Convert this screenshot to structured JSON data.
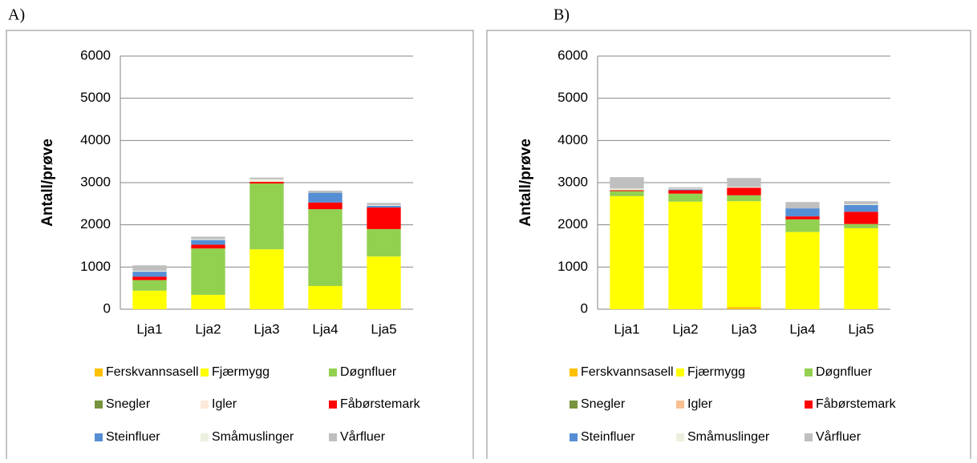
{
  "chart_data": [
    {
      "type": "bar",
      "stacked": true,
      "label": "A)",
      "y_label": "Antall/prøve",
      "categories": [
        "Lja1",
        "Lja2",
        "Lja3",
        "Lja4",
        "Lja5"
      ],
      "ylim": [
        0,
        6000
      ],
      "yticks": [
        0,
        1000,
        2000,
        3000,
        4000,
        5000,
        6000
      ],
      "grid": true,
      "series": [
        {
          "name": "Ferskvannsasell",
          "color": "#ffc000",
          "values": [
            0,
            0,
            0,
            0,
            0
          ]
        },
        {
          "name": "Fjærmygg",
          "color": "#ffff00",
          "values": [
            440,
            340,
            1420,
            550,
            1250
          ]
        },
        {
          "name": "Døgnfluer",
          "color": "#92d050",
          "values": [
            250,
            1100,
            1560,
            1820,
            650
          ]
        },
        {
          "name": "Snegler",
          "color": "#77933c",
          "values": [
            0,
            0,
            0,
            0,
            0
          ]
        },
        {
          "name": "Igler",
          "color": "#fde9d9",
          "values": [
            0,
            0,
            0,
            0,
            0
          ]
        },
        {
          "name": "Fåbørstemark",
          "color": "#ff0000",
          "values": [
            80,
            90,
            40,
            160,
            510
          ]
        },
        {
          "name": "Steinfluer",
          "color": "#558ed5",
          "values": [
            120,
            110,
            0,
            230,
            40
          ]
        },
        {
          "name": "Småmuslinger",
          "color": "#ebf1de",
          "values": [
            20,
            20,
            60,
            0,
            20
          ]
        },
        {
          "name": "Vårfluer",
          "color": "#bfbfbf",
          "values": [
            130,
            60,
            40,
            50,
            50
          ]
        }
      ]
    },
    {
      "type": "bar",
      "stacked": true,
      "label": "B)",
      "y_label": "Antall/prøve",
      "categories": [
        "Lja1",
        "Lja2",
        "Lja3",
        "Lja4",
        "Lja5"
      ],
      "ylim": [
        0,
        6000
      ],
      "yticks": [
        0,
        1000,
        2000,
        3000,
        4000,
        5000,
        6000
      ],
      "grid": true,
      "series": [
        {
          "name": "Ferskvannsasell",
          "color": "#ffc000",
          "values": [
            0,
            0,
            50,
            0,
            0
          ]
        },
        {
          "name": "Fjærmygg",
          "color": "#ffff00",
          "values": [
            2680,
            2550,
            2510,
            1830,
            1920
          ]
        },
        {
          "name": "Døgnfluer",
          "color": "#92d050",
          "values": [
            120,
            190,
            140,
            300,
            100
          ]
        },
        {
          "name": "Snegler",
          "color": "#77933c",
          "values": [
            0,
            0,
            0,
            0,
            0
          ]
        },
        {
          "name": "Igler",
          "color": "#fac090",
          "values": [
            0,
            0,
            0,
            0,
            0
          ]
        },
        {
          "name": "Fåbørstemark",
          "color": "#ff0000",
          "values": [
            20,
            80,
            180,
            70,
            290
          ]
        },
        {
          "name": "Steinfluer",
          "color": "#558ed5",
          "values": [
            0,
            20,
            0,
            190,
            160
          ]
        },
        {
          "name": "Småmuslinger",
          "color": "#ebf1de",
          "values": [
            40,
            20,
            20,
            0,
            20
          ]
        },
        {
          "name": "Vårfluer",
          "color": "#bfbfbf",
          "values": [
            270,
            30,
            210,
            150,
            70
          ]
        }
      ]
    }
  ]
}
